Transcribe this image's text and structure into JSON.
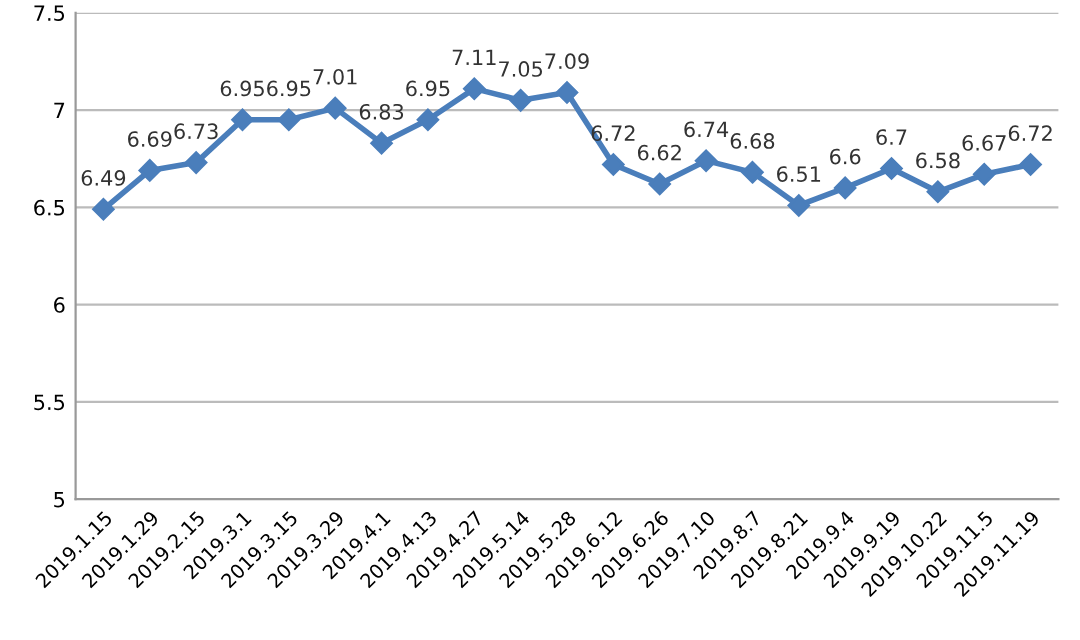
{
  "chart_data": {
    "type": "line",
    "categories": [
      "2019.1.15",
      "2019.1.29",
      "2019.2.15",
      "2019.3.1",
      "2019.3.15",
      "2019.3.29",
      "2019.4.1",
      "2019.4.13",
      "2019.4.27",
      "2019.5.14",
      "2019.5.28",
      "2019.6.12",
      "2019.6.26",
      "2019.7.10",
      "2019.8.7",
      "2019.8.21",
      "2019.9.4",
      "2019.9.19",
      "2019.10.22",
      "2019.11.5",
      "2019.11.19"
    ],
    "series": [
      {
        "color": "#4a7ebb",
        "values": [
          6.49,
          6.69,
          6.73,
          6.95,
          6.95,
          7.01,
          6.83,
          6.95,
          7.11,
          7.05,
          7.09,
          6.72,
          6.62,
          6.74,
          6.68,
          6.51,
          6.6,
          6.7,
          6.58,
          6.67,
          6.72
        ]
      }
    ],
    "ylim": [
      5,
      7.5
    ],
    "yticks": [
      5,
      5.5,
      6,
      6.5,
      7,
      7.5
    ],
    "grid": "y",
    "marker": "diamond",
    "data_labels": true,
    "legend": false
  }
}
